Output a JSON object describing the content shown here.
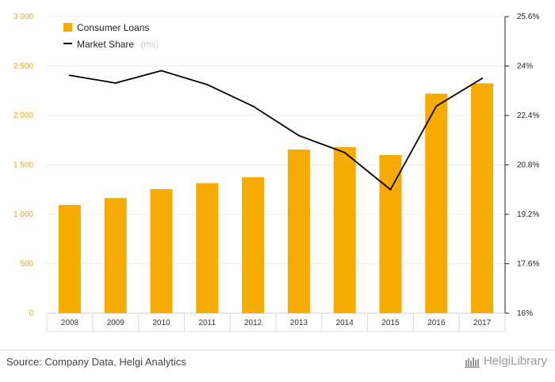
{
  "chart_data": {
    "type": "bar",
    "categories": [
      "2008",
      "2009",
      "2010",
      "2011",
      "2012",
      "2013",
      "2014",
      "2015",
      "2016",
      "2017"
    ],
    "series": [
      {
        "name": "Consumer Loans",
        "type": "bar",
        "axis": "left",
        "color": "#f5ab00",
        "values": [
          1095,
          1165,
          1255,
          1315,
          1375,
          1655,
          1680,
          1600,
          2220,
          2325
        ]
      },
      {
        "name": "Market Share",
        "type": "line",
        "axis": "right",
        "color": "#000000",
        "values": [
          23.7,
          23.45,
          23.85,
          23.4,
          22.7,
          21.75,
          21.2,
          20.0,
          22.7,
          23.6
        ]
      }
    ],
    "y_left": {
      "ylim": [
        0,
        3000
      ],
      "ticks": [
        "0",
        "500",
        "1 000",
        "1 500",
        "2 000",
        "2 500",
        "3 000"
      ]
    },
    "y_right": {
      "ylim": [
        16,
        25.6
      ],
      "ticks": [
        "16%",
        "17.6%",
        "19.2%",
        "20.8%",
        "22.4%",
        "24%",
        "25.6%"
      ]
    },
    "legend": {
      "position": "top-left",
      "items": [
        "Consumer Loans",
        "Market Share"
      ],
      "note": "(rhs)"
    },
    "grid": true
  },
  "footer": {
    "source": "Source: Company Data, Helgi Analytics",
    "logo_text": "HelgiLibrary"
  }
}
